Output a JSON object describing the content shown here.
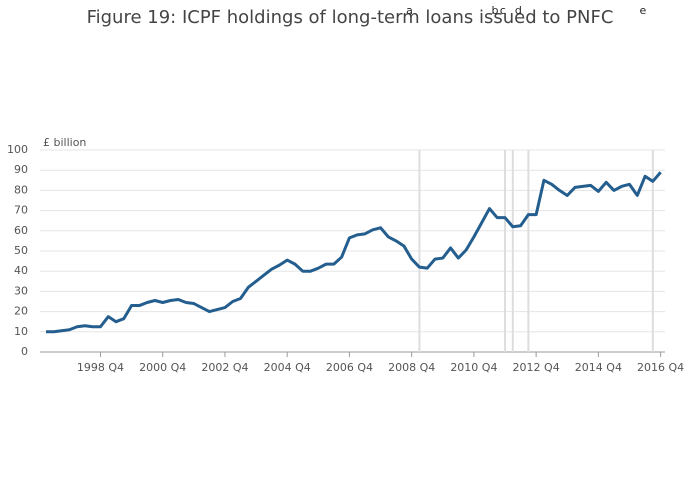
{
  "chart_data": {
    "type": "line",
    "title": "Figure 19: ICPF holdings of long-term loans issued to PNFC",
    "y_label": "£ billion",
    "categories": [
      "1997 Q1",
      "1997 Q2",
      "1997 Q3",
      "1997 Q4",
      "1998 Q1",
      "1998 Q2",
      "1998 Q3",
      "1998 Q4",
      "1999 Q1",
      "1999 Q2",
      "1999 Q3",
      "1999 Q4",
      "2000 Q1",
      "2000 Q2",
      "2000 Q3",
      "2000 Q4",
      "2001 Q1",
      "2001 Q2",
      "2001 Q3",
      "2001 Q4",
      "2002 Q1",
      "2002 Q2",
      "2002 Q3",
      "2002 Q4",
      "2003 Q1",
      "2003 Q2",
      "2003 Q3",
      "2003 Q4",
      "2004 Q1",
      "2004 Q2",
      "2004 Q3",
      "2004 Q4",
      "2005 Q1",
      "2005 Q2",
      "2005 Q3",
      "2005 Q4",
      "2006 Q1",
      "2006 Q2",
      "2006 Q3",
      "2006 Q4",
      "2007 Q1",
      "2007 Q2",
      "2007 Q3",
      "2007 Q4",
      "2008 Q1",
      "2008 Q2",
      "2008 Q3",
      "2008 Q4",
      "2009 Q1",
      "2009 Q2",
      "2009 Q3",
      "2009 Q4",
      "2010 Q1",
      "2010 Q2",
      "2010 Q3",
      "2010 Q4",
      "2011 Q1",
      "2011 Q2",
      "2011 Q3",
      "2011 Q4",
      "2012 Q1",
      "2012 Q2",
      "2012 Q3",
      "2012 Q4",
      "2013 Q1",
      "2013 Q2",
      "2013 Q3",
      "2013 Q4",
      "2014 Q1",
      "2014 Q2",
      "2014 Q3",
      "2014 Q4",
      "2015 Q1",
      "2015 Q2",
      "2015 Q3",
      "2015 Q4",
      "2016 Q1",
      "2016 Q2",
      "2016 Q3",
      "2016 Q4"
    ],
    "xticks": [
      "1998 Q4",
      "2000 Q4",
      "2002 Q4",
      "2004 Q4",
      "2006 Q4",
      "2008 Q4",
      "2010 Q4",
      "2012 Q4",
      "2014 Q4",
      "2016 Q4"
    ],
    "series": [
      {
        "color": "#245e8e",
        "values": [
          10,
          10,
          10.5,
          11,
          12.5,
          13,
          12.5,
          12.5,
          17.5,
          15,
          16.5,
          23,
          23,
          24.5,
          25.5,
          24.5,
          25.5,
          26,
          24.5,
          24,
          22,
          20,
          21,
          22,
          25,
          26.5,
          32,
          35,
          38,
          41,
          43,
          45.5,
          43.5,
          40,
          40,
          41.5,
          43.5,
          43.5,
          47,
          56.5,
          58,
          58.5,
          60.5,
          61.5,
          57,
          55,
          52.5,
          46,
          42,
          41.5,
          46,
          46.5,
          51.5,
          46.5,
          50.5,
          57,
          64,
          71,
          66.5,
          66.5,
          62,
          62.5,
          68,
          68,
          85,
          83,
          80,
          77.5,
          81.5,
          82,
          82.5,
          79.5,
          84,
          80,
          82,
          83,
          77.5,
          87,
          84.5,
          89
        ]
      }
    ],
    "annotations": [
      {
        "x": "2009 Q1",
        "label": "a"
      },
      {
        "x": "2011 Q4",
        "label": "b"
      },
      {
        "x": "2012 Q1",
        "label": "c"
      },
      {
        "x": "2012 Q3",
        "label": "d"
      },
      {
        "x": "2016 Q3",
        "label": "e"
      }
    ],
    "ylim": [
      0,
      100
    ],
    "yticks": [
      0,
      10,
      20,
      30,
      40,
      50,
      60,
      70,
      80,
      90,
      100
    ],
    "grid": true
  }
}
